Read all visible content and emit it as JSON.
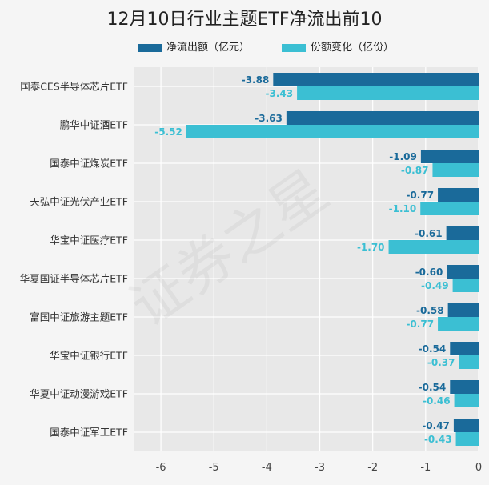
{
  "chart_data": {
    "type": "bar",
    "orientation": "horizontal",
    "title": "12月10日行业主题ETF净流出前10",
    "categories": [
      "国泰CES半导体芯片ETF",
      "鹏华中证酒ETF",
      "国泰中证煤炭ETF",
      "天弘中证光伏产业ETF",
      "华宝中证医疗ETF",
      "华夏国证半导体芯片ETF",
      "富国中证旅游主题ETF",
      "华宝中证银行ETF",
      "华夏中证动漫游戏ETF",
      "国泰中证军工ETF"
    ],
    "series": [
      {
        "name": "净流出额（亿元）",
        "color": "#1a6a9a",
        "values": [
          -3.88,
          -3.63,
          -1.09,
          -0.77,
          -0.61,
          -0.6,
          -0.58,
          -0.54,
          -0.54,
          -0.47
        ],
        "labels": [
          "-3.88",
          "-3.63",
          "-1.09",
          "-0.77",
          "-0.61",
          "-0.60",
          "-0.58",
          "-0.54",
          "-0.54",
          "-0.47"
        ]
      },
      {
        "name": "份额变化（亿份）",
        "color": "#3bbfd3",
        "values": [
          -3.43,
          -5.52,
          -0.87,
          -1.1,
          -1.7,
          -0.49,
          -0.77,
          -0.37,
          -0.46,
          -0.43
        ],
        "labels": [
          "-3.43",
          "-5.52",
          "-0.87",
          "-1.10",
          "-1.70",
          "-0.49",
          "-0.77",
          "-0.37",
          "-0.46",
          "-0.43"
        ]
      }
    ],
    "xlim": [
      -6.5,
      0
    ],
    "xticks": [
      -6,
      -5,
      -4,
      -3,
      -2,
      -1,
      0
    ],
    "grid": true,
    "legend": "top",
    "plot_background": "#e8e8e8",
    "watermark": "证券之星"
  }
}
